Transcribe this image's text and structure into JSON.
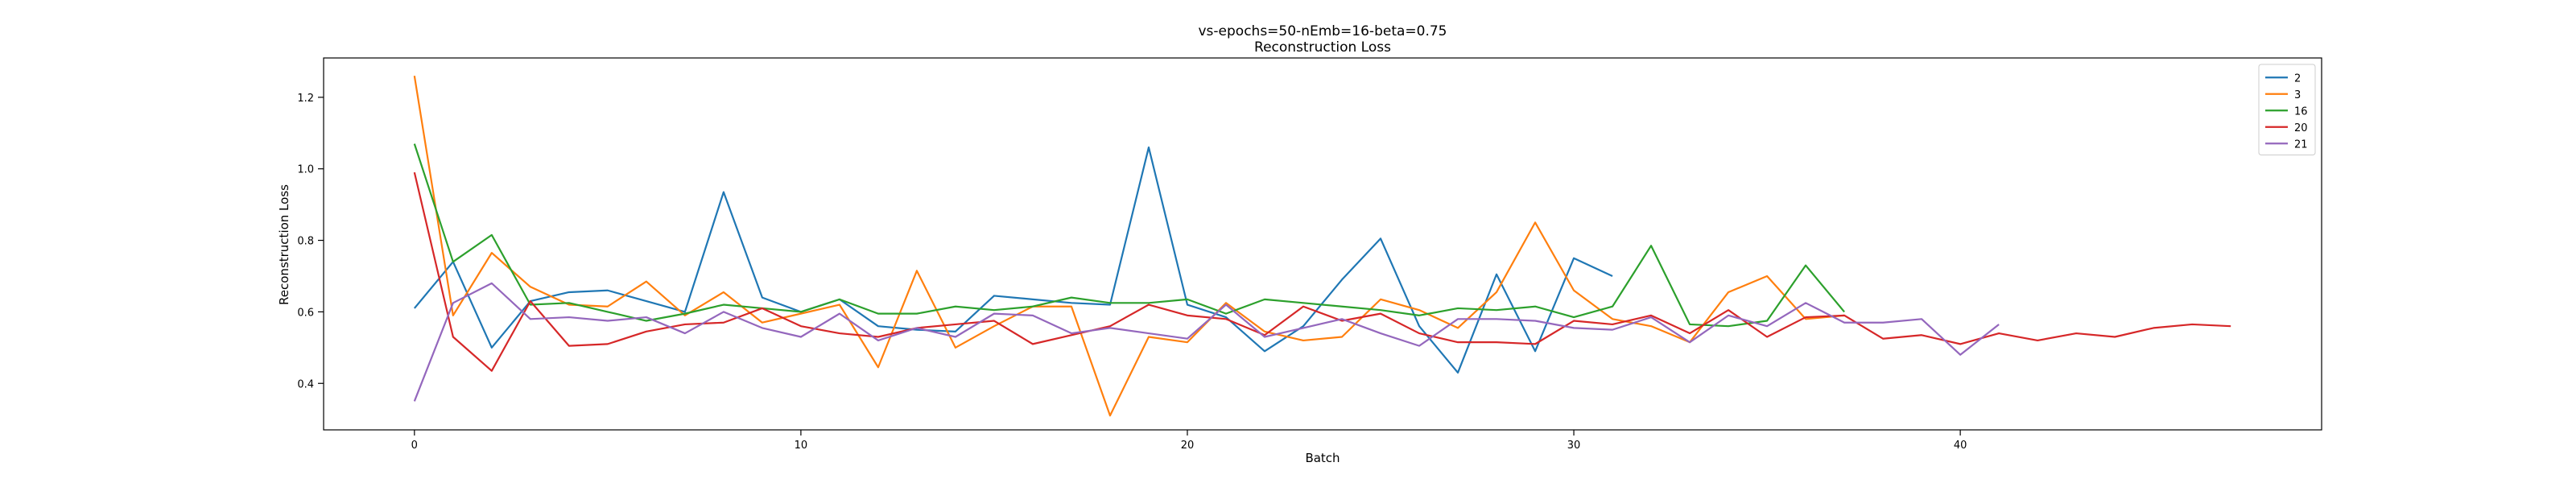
{
  "chart_data": {
    "type": "line",
    "title": "vs-epochs=50-nEmb=16-beta=0.75",
    "subtitle": "Reconstruction Loss",
    "xlabel": "Batch",
    "ylabel": "Reconstruction Loss",
    "xlim": [
      -2.35,
      49.35
    ],
    "ylim": [
      0.27,
      1.31
    ],
    "xticks": [
      0,
      10,
      20,
      30,
      40
    ],
    "yticks": [
      0.4,
      0.6,
      0.8,
      1.0,
      1.2
    ],
    "xtick_labels": [
      "0",
      "10",
      "20",
      "30",
      "40"
    ],
    "ytick_labels": [
      "0.4",
      "0.6",
      "0.8",
      "1.0",
      "1.2"
    ],
    "grid": false,
    "legend_position": "top-right",
    "series": [
      {
        "name": "2",
        "color": "#1f77b4",
        "values": [
          0.61,
          0.74,
          0.5,
          0.63,
          0.655,
          0.66,
          0.63,
          0.6,
          0.935,
          0.64,
          0.6,
          0.635,
          0.56,
          0.55,
          0.545,
          0.645,
          0.635,
          0.625,
          0.62,
          1.06,
          0.62,
          0.585,
          0.49,
          0.56,
          0.69,
          0.805,
          0.56,
          0.43,
          0.705,
          0.49,
          0.75,
          0.7
        ]
      },
      {
        "name": "3",
        "color": "#ff7f0e",
        "values": [
          1.26,
          0.59,
          0.765,
          0.67,
          0.62,
          0.615,
          0.685,
          0.59,
          0.655,
          0.57,
          0.595,
          0.62,
          0.445,
          0.715,
          0.5,
          0.56,
          0.615,
          0.615,
          0.31,
          0.53,
          0.515,
          0.625,
          0.545,
          0.52,
          0.53,
          0.635,
          0.605,
          0.555,
          0.655,
          0.85,
          0.66,
          0.58,
          0.56,
          0.515,
          0.655,
          0.7,
          0.58,
          0.59
        ]
      },
      {
        "name": "16",
        "color": "#2ca02c",
        "values": [
          1.07,
          0.74,
          0.815,
          0.62,
          0.625,
          0.6,
          0.575,
          0.595,
          0.62,
          0.61,
          0.6,
          0.635,
          0.595,
          0.595,
          0.615,
          0.605,
          0.615,
          0.64,
          0.625,
          0.625,
          0.635,
          0.595,
          0.635,
          0.625,
          0.615,
          0.605,
          0.59,
          0.61,
          0.605,
          0.615,
          0.585,
          0.615,
          0.785,
          0.565,
          0.56,
          0.575,
          0.73,
          0.6
        ]
      },
      {
        "name": "20",
        "color": "#d62728",
        "values": [
          0.99,
          0.53,
          0.435,
          0.63,
          0.505,
          0.51,
          0.545,
          0.565,
          0.57,
          0.61,
          0.56,
          0.54,
          0.53,
          0.555,
          0.565,
          0.575,
          0.51,
          0.535,
          0.56,
          0.62,
          0.59,
          0.58,
          0.535,
          0.615,
          0.575,
          0.595,
          0.54,
          0.515,
          0.515,
          0.51,
          0.575,
          0.565,
          0.59,
          0.54,
          0.605,
          0.53,
          0.585,
          0.59,
          0.525,
          0.535,
          0.51,
          0.54,
          0.52,
          0.54,
          0.53,
          0.555,
          0.565,
          0.56
        ]
      },
      {
        "name": "21",
        "color": "#9467bd",
        "values": [
          0.35,
          0.625,
          0.68,
          0.58,
          0.585,
          0.575,
          0.585,
          0.54,
          0.6,
          0.555,
          0.53,
          0.595,
          0.52,
          0.555,
          0.53,
          0.595,
          0.59,
          0.54,
          0.555,
          0.54,
          0.525,
          0.62,
          0.53,
          0.555,
          0.58,
          0.54,
          0.505,
          0.58,
          0.58,
          0.575,
          0.555,
          0.55,
          0.585,
          0.515,
          0.59,
          0.56,
          0.625,
          0.57,
          0.57,
          0.58,
          0.48,
          0.565
        ]
      }
    ]
  }
}
